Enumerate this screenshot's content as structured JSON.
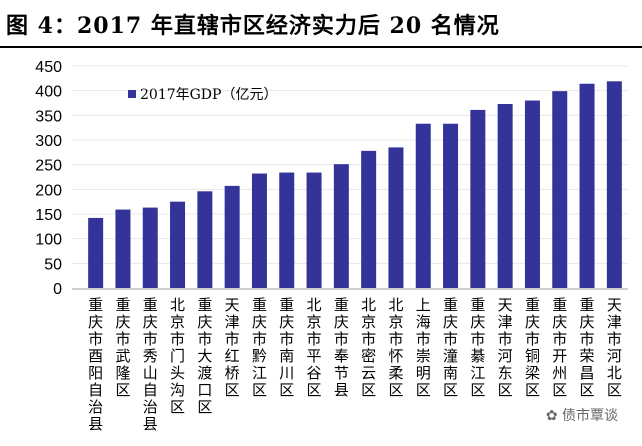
{
  "title": "图 4：2017 年直辖市区经济实力后 20 名情况",
  "watermark": "债市覃谈",
  "chart_data": {
    "type": "bar",
    "categories": [
      "重庆市酉阳自治县",
      "重庆市武隆区",
      "重庆市秀山自治县",
      "北京市门头沟区",
      "重庆市大渡口区",
      "天津市红桥区",
      "重庆市黔江区",
      "重庆市南川区",
      "北京市平谷区",
      "重庆市奉节县",
      "北京市密云区",
      "北京市怀柔区",
      "上海市崇明区",
      "重庆市潼南区",
      "重庆市綦江区",
      "天津市河东区",
      "重庆市铜梁区",
      "重庆市开州区",
      "重庆市荣昌区",
      "天津市河北区"
    ],
    "series": [
      {
        "name": "2017年GDP（亿元）",
        "values": [
          142,
          159,
          163,
          175,
          196,
          207,
          232,
          234,
          234,
          251,
          278,
          285,
          333,
          333,
          361,
          373,
          380,
          399,
          414,
          419
        ],
        "color": "#333399"
      }
    ],
    "yticks": [
      0,
      50,
      100,
      150,
      200,
      250,
      300,
      350,
      400,
      450
    ],
    "ylim": [
      0,
      450
    ],
    "grid": true,
    "legend": "top-left"
  }
}
